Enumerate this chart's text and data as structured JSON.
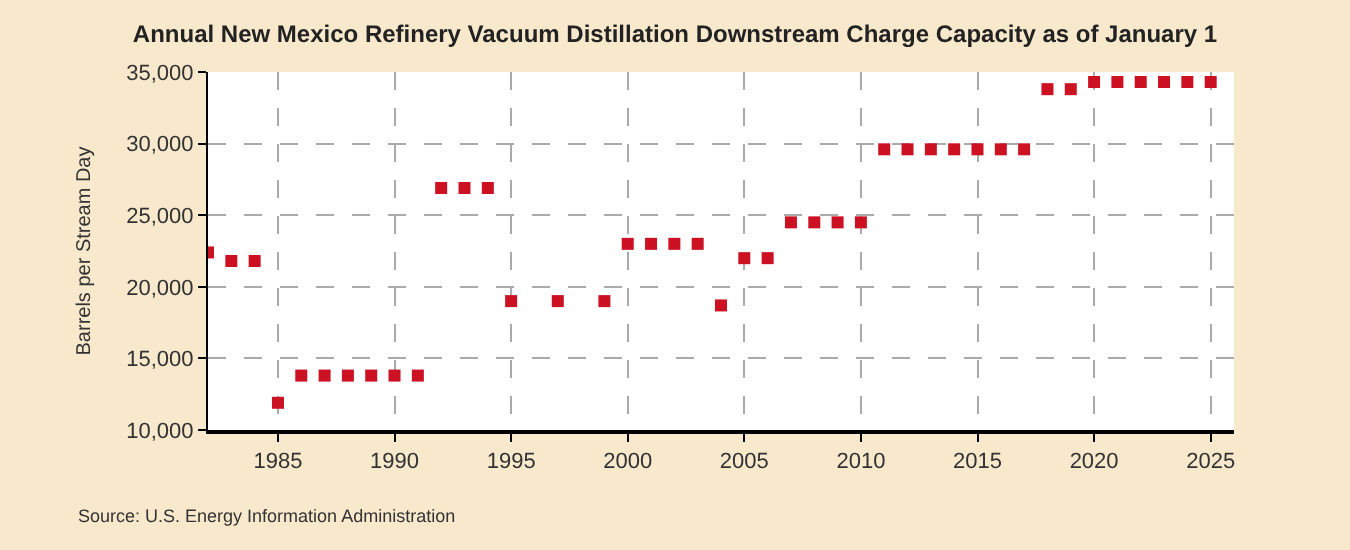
{
  "chart_data": {
    "type": "scatter",
    "title": "Annual New Mexico Refinery Vacuum Distillation Downstream Charge Capacity as of January 1",
    "ylabel": "Barrels per Stream Day",
    "x": [
      1982,
      1983,
      1984,
      1985,
      1986,
      1987,
      1988,
      1989,
      1990,
      1991,
      1992,
      1993,
      1994,
      1995,
      1997,
      1999,
      2000,
      2001,
      2002,
      2003,
      2004,
      2005,
      2006,
      2007,
      2008,
      2009,
      2010,
      2011,
      2012,
      2013,
      2014,
      2015,
      2016,
      2017,
      2018,
      2019,
      2020,
      2021,
      2022,
      2023,
      2024,
      2025
    ],
    "series": [
      {
        "color": "#cc1122",
        "values": [
          22400,
          21800,
          21800,
          11900,
          13800,
          13800,
          13800,
          13800,
          13800,
          13800,
          26900,
          26900,
          26900,
          19000,
          19000,
          19000,
          23000,
          23000,
          23000,
          23000,
          18700,
          22000,
          22000,
          24500,
          24500,
          24500,
          24500,
          29600,
          29600,
          29600,
          29600,
          29600,
          29600,
          29600,
          33800,
          33800,
          34300,
          34300,
          34300,
          34300,
          34300,
          34300
        ]
      }
    ],
    "xlim": [
      1982,
      2026
    ],
    "xticks": [
      1985,
      1990,
      1995,
      2000,
      2005,
      2010,
      2015,
      2020,
      2025
    ],
    "ylim": [
      10000,
      35000
    ],
    "yticks": [
      {
        "value": 10000,
        "label": "10,000"
      },
      {
        "value": 15000,
        "label": "15,000"
      },
      {
        "value": 20000,
        "label": "20,000"
      },
      {
        "value": 25000,
        "label": "25,000"
      },
      {
        "value": 30000,
        "label": "30,000"
      },
      {
        "value": 35000,
        "label": "35,000"
      }
    ],
    "grid": true,
    "marker": "square",
    "annotations": [
      "Source: U.S. Energy Information Administration"
    ]
  }
}
